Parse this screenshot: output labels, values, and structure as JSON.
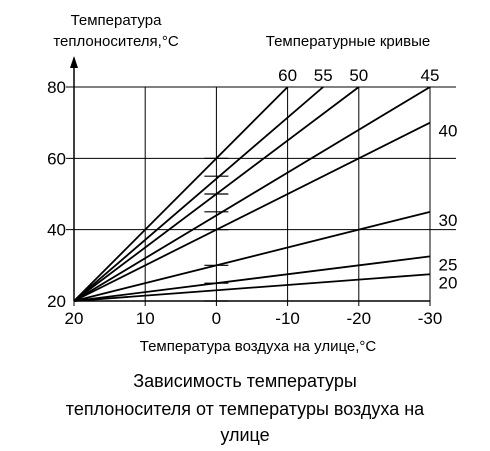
{
  "chart_data": {
    "type": "line",
    "ylabel_lines": [
      "Температура",
      "теплоносителя,°C"
    ],
    "curves_title": "Температурные кривые",
    "xlabel": "Температура воздуха на улице,°C",
    "x_ticks": [
      "20",
      "10",
      "0",
      "-10",
      "-20",
      "-30"
    ],
    "y_ticks": [
      "20",
      "40",
      "60",
      "80"
    ],
    "xlim": [
      20,
      -30
    ],
    "ylim": [
      20,
      80
    ],
    "grid": true,
    "series": [
      {
        "name": "60",
        "x": [
          20,
          -10
        ],
        "y": [
          20,
          80
        ]
      },
      {
        "name": "55",
        "x": [
          20,
          -15
        ],
        "y": [
          20,
          80
        ]
      },
      {
        "name": "50",
        "x": [
          20,
          -20
        ],
        "y": [
          20,
          80
        ]
      },
      {
        "name": "45",
        "x": [
          20,
          -30
        ],
        "y": [
          20,
          80
        ]
      },
      {
        "name": "40",
        "x": [
          20,
          -30
        ],
        "y": [
          20,
          70
        ]
      },
      {
        "name": "30",
        "x": [
          20,
          -30
        ],
        "y": [
          20,
          45
        ]
      },
      {
        "name": "25",
        "x": [
          20,
          -30
        ],
        "y": [
          20,
          32.5
        ]
      },
      {
        "name": "20",
        "x": [
          20,
          -30
        ],
        "y": [
          20,
          27.5
        ]
      }
    ],
    "ticks_at_zero": [
      20,
      25,
      30,
      40,
      45,
      50,
      55,
      60
    ]
  },
  "caption": {
    "line1": "Зависимость температуры",
    "line2": "теплоносителя от температуры воздуха на",
    "line3": "улице"
  }
}
